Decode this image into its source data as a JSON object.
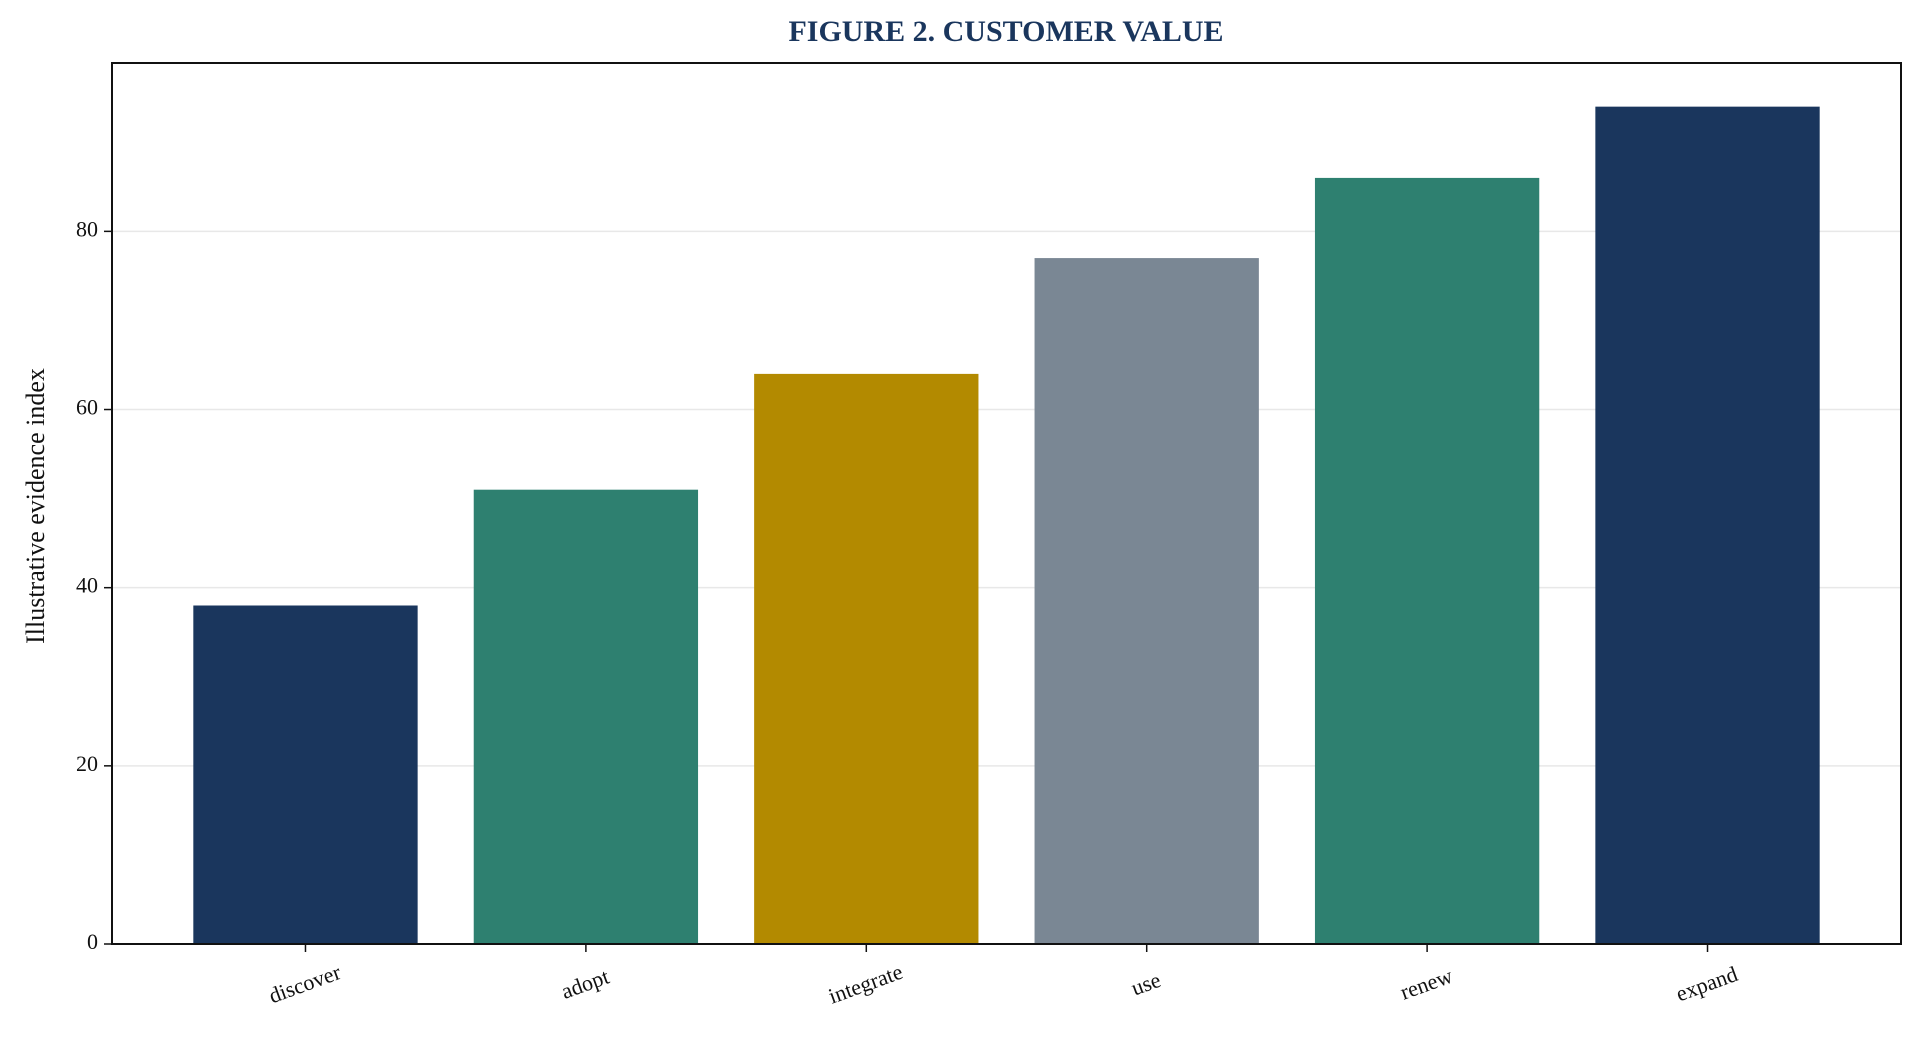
{
  "chart_data": {
    "type": "bar",
    "title": "FIGURE 2. CUSTOMER VALUE",
    "y_label": "Illustrative evidence index",
    "categories": [
      "discover",
      "adopt",
      "integrate",
      "use",
      "renew",
      "expand"
    ],
    "values": [
      38,
      51,
      64,
      77,
      86,
      94
    ],
    "colors": [
      "#1a365d",
      "#2e8070",
      "#b38a00",
      "#7a8794",
      "#2e8070",
      "#1a365d"
    ],
    "ylim": [
      0,
      98.9
    ],
    "yticks": [
      0,
      20,
      40,
      60,
      80
    ],
    "grid": true
  }
}
